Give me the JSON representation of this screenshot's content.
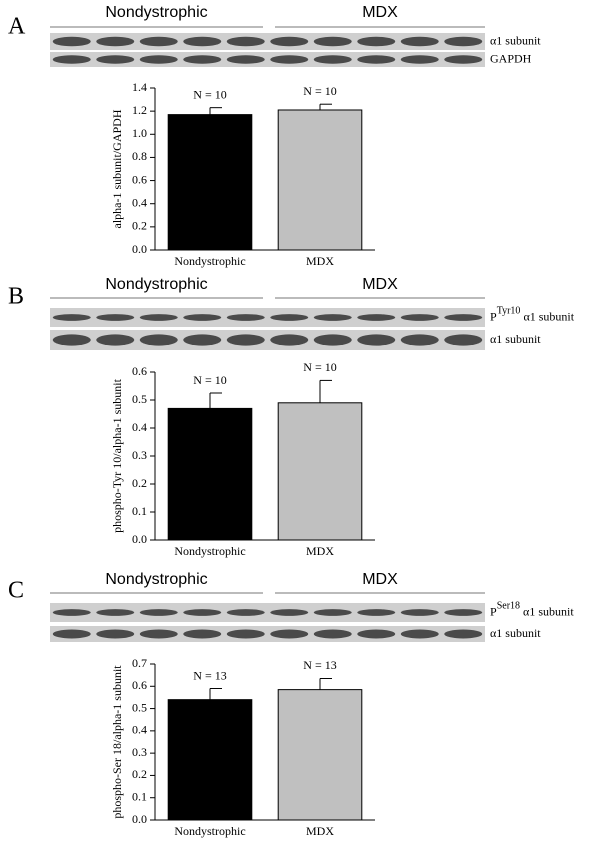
{
  "chart_data": [
    {
      "type": "bar",
      "panel": "A",
      "groups": [
        "Nondystrophic",
        "MDX"
      ],
      "blot_labels": [
        {
          "text": "α1 subunit"
        },
        {
          "text": "GAPDH"
        }
      ],
      "y_label": "alpha-1 subunit/GAPDH",
      "categories": [
        "Nondystrophic",
        "MDX"
      ],
      "values": [
        1.17,
        1.21
      ],
      "errors": [
        0.06,
        0.05
      ],
      "annotations": [
        "N = 10",
        "N = 10"
      ],
      "colors": [
        "#000000",
        "#c0c0c0"
      ],
      "ylim": [
        0,
        1.4
      ],
      "yticks": [
        {
          "value": 0,
          "label": "0.0"
        },
        {
          "value": 0.2,
          "label": "0.2"
        },
        {
          "value": 0.4,
          "label": "0.4"
        },
        {
          "value": 0.6,
          "label": "0.6"
        },
        {
          "value": 0.8,
          "label": "0.8"
        },
        {
          "value": 1,
          "label": "1.0"
        },
        {
          "value": 1.2,
          "label": "1.2"
        },
        {
          "value": 1.4,
          "label": "1.4"
        }
      ]
    },
    {
      "type": "bar",
      "panel": "B",
      "groups": [
        "Nondystrophic",
        "MDX"
      ],
      "blot_labels": [
        {
          "prefix": "P",
          "superscript": "Tyr10",
          "text": "α1 subunit"
        },
        {
          "text": "α1 subunit"
        }
      ],
      "y_label": "phospho-Tyr 10/alpha-1 subunit",
      "categories": [
        "Nondystrophic",
        "MDX"
      ],
      "values": [
        0.47,
        0.49
      ],
      "errors": [
        0.055,
        0.08
      ],
      "annotations": [
        "N = 10",
        "N = 10"
      ],
      "colors": [
        "#000000",
        "#c0c0c0"
      ],
      "ylim": [
        0,
        0.6
      ],
      "yticks": [
        {
          "value": 0,
          "label": "0.0"
        },
        {
          "value": 0.1,
          "label": "0.1"
        },
        {
          "value": 0.2,
          "label": "0.2"
        },
        {
          "value": 0.3,
          "label": "0.3"
        },
        {
          "value": 0.4,
          "label": "0.4"
        },
        {
          "value": 0.5,
          "label": "0.5"
        },
        {
          "value": 0.6,
          "label": "0.6"
        }
      ]
    },
    {
      "type": "bar",
      "panel": "C",
      "groups": [
        "Nondystrophic",
        "MDX"
      ],
      "blot_labels": [
        {
          "prefix": "P",
          "superscript": "Ser18",
          "text": "α1 subunit"
        },
        {
          "text": "α1 subunit"
        }
      ],
      "y_label": "phospho-Ser 18/alpha-1 subunit",
      "categories": [
        "Nondystrophic",
        "MDX"
      ],
      "values": [
        0.54,
        0.585
      ],
      "errors": [
        0.05,
        0.05
      ],
      "annotations": [
        "N = 13",
        "N = 13"
      ],
      "colors": [
        "#000000",
        "#c0c0c0"
      ],
      "ylim": [
        0,
        0.7
      ],
      "yticks": [
        {
          "value": 0,
          "label": "0.0"
        },
        {
          "value": 0.1,
          "label": "0.1"
        },
        {
          "value": 0.2,
          "label": "0.2"
        },
        {
          "value": 0.3,
          "label": "0.3"
        },
        {
          "value": 0.4,
          "label": "0.4"
        },
        {
          "value": 0.5,
          "label": "0.5"
        },
        {
          "value": 0.6,
          "label": "0.6"
        },
        {
          "value": 0.7,
          "label": "0.7"
        }
      ]
    }
  ]
}
